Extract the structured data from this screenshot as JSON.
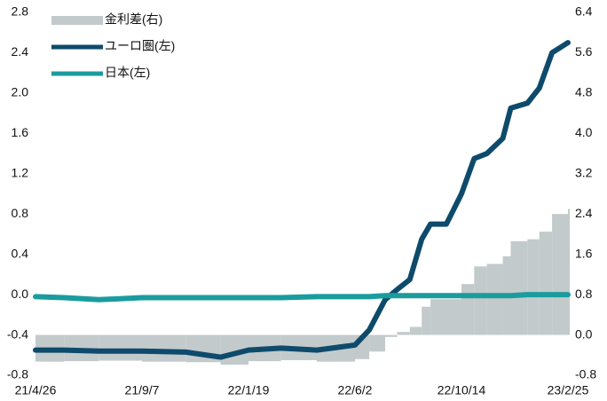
{
  "chart_data": {
    "type": "line",
    "x": [
      "21/4/26",
      "21/6/1",
      "21/7/15",
      "21/9/7",
      "21/11/1",
      "21/12/15",
      "22/1/19",
      "22/3/1",
      "22/4/15",
      "22/6/2",
      "22/6/20",
      "22/7/10",
      "22/7/25",
      "22/8/10",
      "22/8/25",
      "22/9/5",
      "22/9/25",
      "22/10/14",
      "22/10/30",
      "22/11/15",
      "22/12/5",
      "22/12/15",
      "23/1/5",
      "23/1/20",
      "23/2/5",
      "23/2/25"
    ],
    "series": [
      {
        "name": "金利差(右)",
        "type": "bar",
        "axis": "y2",
        "color": "#c3cacc",
        "values": [
          -0.53,
          -0.52,
          -0.51,
          -0.53,
          -0.54,
          -0.59,
          -0.52,
          -0.5,
          -0.53,
          -0.48,
          -0.33,
          -0.04,
          0.06,
          0.16,
          0.56,
          0.71,
          0.71,
          1.01,
          1.36,
          1.41,
          1.56,
          1.86,
          1.9,
          2.05,
          2.4,
          2.5
        ]
      },
      {
        "name": "ユーロ圏(左)",
        "type": "line",
        "color": "#0e4a6b",
        "values": [
          -0.55,
          -0.55,
          -0.56,
          -0.56,
          -0.57,
          -0.62,
          -0.55,
          -0.53,
          -0.55,
          -0.5,
          -0.35,
          -0.05,
          0.05,
          0.15,
          0.55,
          0.7,
          0.7,
          1.0,
          1.35,
          1.4,
          1.55,
          1.85,
          1.9,
          2.05,
          2.4,
          2.5
        ]
      },
      {
        "name": "日本(左)",
        "type": "line",
        "color": "#1a9c9e",
        "values": [
          -0.02,
          -0.03,
          -0.05,
          -0.03,
          -0.03,
          -0.03,
          -0.03,
          -0.03,
          -0.02,
          -0.02,
          -0.02,
          -0.01,
          -0.01,
          -0.01,
          -0.01,
          -0.01,
          -0.01,
          -0.01,
          -0.01,
          -0.01,
          -0.01,
          -0.01,
          0.0,
          0.0,
          0.0,
          0.0
        ]
      }
    ],
    "xticks": [
      "21/4/26",
      "21/9/7",
      "22/1/19",
      "22/6/2",
      "22/10/14",
      "23/2/25"
    ],
    "ylim": [
      -0.8,
      2.8
    ],
    "yticks": [
      -0.8,
      -0.4,
      {
        "value": 0,
        "label": "0.0"
      },
      0.4,
      0.8,
      1.2,
      1.6,
      {
        "value": 2,
        "label": "2.0"
      },
      2.4,
      2.8
    ],
    "y2lim": [
      -0.8,
      6.4
    ],
    "y2ticks": [
      -0.8,
      {
        "value": 0,
        "label": "0.0"
      },
      0.8,
      1.6,
      2.4,
      3.2,
      {
        "value": 4,
        "label": "4.0"
      },
      4.8,
      5.6,
      6.4
    ],
    "legend": "top-left"
  }
}
